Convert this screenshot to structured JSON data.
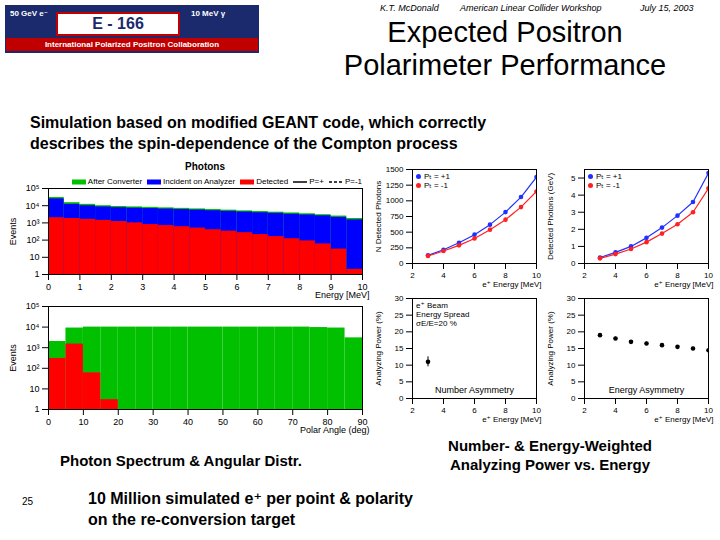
{
  "page": {
    "logo": {
      "experiment": "E - 166",
      "beam": "50 GeV e⁻",
      "photon": "10 MeV γ",
      "collaboration": "International Polarized Positron Collaboration"
    },
    "author": "K.T. McDonald",
    "event": "American Linear Collider Workshop",
    "date": "July 15, 2003",
    "title": [
      "Expected Positron",
      "Polarimeter Performance"
    ],
    "intro": [
      "Simulation based on modified GEANT code, which correctly",
      "describes the spin-dependence of the Compton process"
    ],
    "caption_left": "Photon Spectrum & Angular Distr.",
    "caption_right": [
      "Number- & Energy-Weighted",
      "Analyzing Power vs. Energy"
    ],
    "footer": [
      "10 Million simulated e⁺ per point & polarity",
      "on the re-conversion target"
    ],
    "page_number": 25
  },
  "chart_data": [
    {
      "type": "histogram",
      "title": "Photons",
      "xlabel": "Energy [MeV]",
      "ylabel": "Events",
      "log": "y",
      "xlim": [
        0,
        10
      ],
      "xticks": [
        0,
        1,
        2,
        3,
        4,
        5,
        6,
        7,
        8,
        9,
        10
      ],
      "ylim": [
        1,
        100000
      ],
      "yticks": [
        1,
        10,
        {
          "value": 100,
          "label": "10²"
        },
        {
          "value": 1000,
          "label": "10³"
        },
        {
          "value": 10000,
          "label": "10⁴"
        },
        {
          "value": 100000,
          "label": "10⁵"
        }
      ],
      "bins": [
        0,
        0.5,
        1,
        1.5,
        2,
        2.5,
        3,
        3.5,
        4,
        4.5,
        5,
        5.5,
        6,
        6.5,
        7,
        7.5,
        8,
        8.5,
        9,
        9.5,
        10
      ],
      "series": [
        {
          "name": "After Converter",
          "color": "#00c000",
          "values": [
            30000,
            15000,
            12000,
            10000,
            9000,
            8500,
            8000,
            7500,
            7000,
            6500,
            6000,
            5500,
            5000,
            4600,
            4200,
            3800,
            3400,
            3000,
            2500,
            1800
          ]
        },
        {
          "name": "Incident on Analyzer",
          "color": "#0000ff",
          "values": [
            25000,
            12000,
            10000,
            8500,
            7700,
            7200,
            6800,
            6400,
            6000,
            5600,
            5100,
            4700,
            4300,
            3900,
            3600,
            3200,
            2900,
            2600,
            2100,
            1500
          ]
        },
        {
          "name": "Detected",
          "color": "#ff0000",
          "values": [
            2000,
            1800,
            1600,
            1400,
            1200,
            1000,
            800,
            700,
            600,
            500,
            400,
            330,
            270,
            210,
            160,
            120,
            90,
            60,
            30,
            2
          ]
        }
      ],
      "legend": "top-right",
      "legend_notes": [
        {
          "name": "P=+",
          "line_style": "solid"
        },
        {
          "name": "P=-1",
          "line_style": "dashed"
        }
      ]
    },
    {
      "type": "histogram",
      "xlabel": "Polar Angle (deg)",
      "ylabel": "Events",
      "log": "y",
      "xlim": [
        0,
        90
      ],
      "xticks": [
        0,
        10,
        20,
        30,
        40,
        50,
        60,
        70,
        80,
        90
      ],
      "ylim": [
        1,
        100000
      ],
      "yticks": [
        1,
        10,
        {
          "value": 100,
          "label": "10²"
        },
        {
          "value": 1000,
          "label": "10³"
        },
        {
          "value": 10000,
          "label": "10⁴"
        },
        {
          "value": 100000,
          "label": "10⁵"
        }
      ],
      "bins": [
        0,
        5,
        10,
        15,
        20,
        25,
        30,
        35,
        40,
        45,
        50,
        55,
        60,
        65,
        70,
        75,
        80,
        85,
        90
      ],
      "series": [
        {
          "name": "After Converter",
          "color": "#00c000",
          "values": [
            2000,
            9000,
            10000,
            10000,
            10000,
            10000,
            10000,
            10000,
            10000,
            10000,
            10000,
            10000,
            10000,
            10000,
            10000,
            9500,
            9000,
            3000
          ]
        },
        {
          "name": "Detected",
          "color": "#ff0000",
          "values": [
            300,
            1500,
            60,
            3,
            1,
            1,
            1,
            1,
            1,
            1,
            1,
            1,
            1,
            1,
            1,
            1,
            1,
            1
          ]
        }
      ]
    },
    {
      "type": "line",
      "xlabel": "e⁺ Energy [MeV]",
      "ylabel": "N Detected Photons",
      "marker": "circle",
      "legend": "top-left",
      "xlim": [
        2,
        10
      ],
      "xticks": [
        2,
        4,
        6,
        8,
        10
      ],
      "ylim": [
        0,
        1500
      ],
      "yticks": [
        0,
        250,
        500,
        750,
        1000,
        1250,
        1500
      ],
      "x": [
        3,
        4,
        5,
        6,
        7,
        8,
        9,
        10
      ],
      "series": [
        {
          "name": "Pₜ = +1",
          "color": "#2030ff",
          "values": [
            130,
            220,
            330,
            460,
            620,
            820,
            1060,
            1380
          ]
        },
        {
          "name": "Pₜ = -1",
          "color": "#ff2020",
          "values": [
            120,
            200,
            290,
            400,
            540,
            700,
            900,
            1150
          ]
        }
      ]
    },
    {
      "type": "line",
      "xlabel": "e⁺ Energy [MeV]",
      "ylabel": "Detected Photons (GeV)",
      "marker": "circle",
      "legend": "top-left",
      "xlim": [
        2,
        10
      ],
      "xticks": [
        2,
        4,
        6,
        8,
        10
      ],
      "ylim": [
        0,
        5.5
      ],
      "yticks": [
        0,
        1,
        2,
        3,
        4,
        5
      ],
      "x": [
        3,
        4,
        5,
        6,
        7,
        8,
        9,
        10
      ],
      "series": [
        {
          "name": "Pₜ = +1",
          "color": "#2030ff",
          "values": [
            0.35,
            0.65,
            1.0,
            1.5,
            2.1,
            2.8,
            3.6,
            5.3
          ]
        },
        {
          "name": "Pₜ = -1",
          "color": "#ff2020",
          "values": [
            0.3,
            0.55,
            0.85,
            1.25,
            1.75,
            2.3,
            3.0,
            4.4
          ]
        }
      ]
    },
    {
      "type": "scatter",
      "xlabel": "e⁺ Energy [MeV]",
      "ylabel": "Analyzing Power (%)",
      "marker": "circle",
      "xlim": [
        2,
        10
      ],
      "xticks": [
        2,
        4,
        6,
        8,
        10
      ],
      "ylim": [
        0,
        30
      ],
      "yticks": [
        0,
        5,
        10,
        15,
        20,
        25,
        30
      ],
      "annotations": [
        "e⁺ Beam",
        "Energy Spread",
        "σE/E=20 %"
      ],
      "x": [
        3
      ],
      "series": [
        {
          "name": "Number Asymmetry",
          "color": "#000000",
          "values": [
            11
          ],
          "errors": [
            1.5
          ]
        }
      ]
    },
    {
      "type": "scatter",
      "xlabel": "e⁺ Energy [MeV]",
      "ylabel": "Analyzing Power (%)",
      "marker": "circle",
      "xlim": [
        2,
        10
      ],
      "xticks": [
        2,
        4,
        6,
        8,
        10
      ],
      "ylim": [
        0,
        30
      ],
      "yticks": [
        0,
        5,
        10,
        15,
        20,
        25,
        30
      ],
      "x": [
        3,
        4,
        5,
        6,
        7,
        8,
        9,
        10
      ],
      "series": [
        {
          "name": "Energy Asymmetry",
          "color": "#000000",
          "values": [
            19,
            18,
            17,
            16.5,
            16,
            15.5,
            15,
            14.5
          ],
          "errors": [
            0.4,
            0.4,
            0.4,
            0.4,
            0.4,
            0.4,
            0.4,
            0.4
          ]
        }
      ]
    }
  ]
}
